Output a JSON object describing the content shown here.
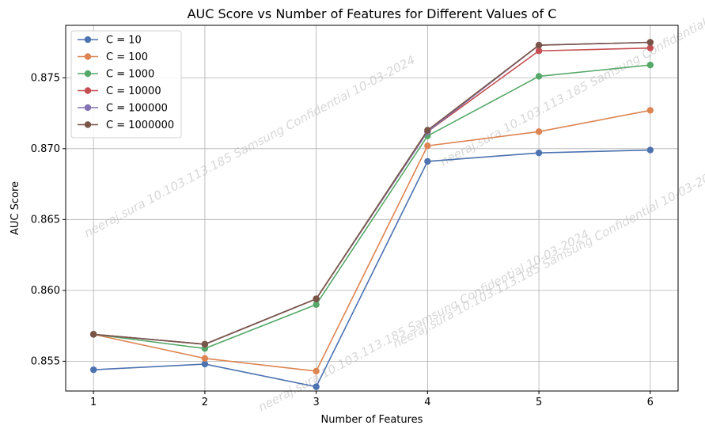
{
  "chart_data": {
    "type": "line",
    "title": "AUC Score vs Number of Features for Different Values of C",
    "xlabel": "Number of Features",
    "ylabel": "AUC Score",
    "x": [
      1,
      2,
      3,
      4,
      5,
      6
    ],
    "xticks": [
      "1",
      "2",
      "3",
      "4",
      "5",
      "6"
    ],
    "yticks": [
      "0.855",
      "0.860",
      "0.865",
      "0.870",
      "0.875"
    ],
    "ytick_values": [
      0.855,
      0.86,
      0.865,
      0.87,
      0.875
    ],
    "xlim": [
      0.75,
      6.25
    ],
    "ylim": [
      0.8529,
      0.8787
    ],
    "grid": true,
    "legend_position": "upper-left",
    "series": [
      {
        "name": "C = 10",
        "color": "#4c72b0",
        "values": [
          0.8544,
          0.8548,
          0.8532,
          0.8691,
          0.8697,
          0.8699
        ]
      },
      {
        "name": "C = 100",
        "color": "#dd8452",
        "values": [
          0.8569,
          0.8552,
          0.8543,
          0.8702,
          0.8712,
          0.8727
        ]
      },
      {
        "name": "C = 1000",
        "color": "#55a868",
        "values": [
          0.8569,
          0.8559,
          0.859,
          0.8709,
          0.8751,
          0.8759
        ]
      },
      {
        "name": "C = 10000",
        "color": "#c44e52",
        "values": [
          0.8569,
          0.8562,
          0.8594,
          0.8712,
          0.8769,
          0.8771
        ]
      },
      {
        "name": "C = 100000",
        "color": "#8172b3",
        "values": [
          0.8569,
          0.8562,
          0.8594,
          0.8712,
          0.8773,
          0.8775
        ]
      },
      {
        "name": "C = 1000000",
        "color": "#795548",
        "values": [
          0.8569,
          0.8562,
          0.8594,
          0.8713,
          0.8773,
          0.8775
        ]
      }
    ],
    "watermark": "neeraj.sura 10.103.113.185 Samsung Confidential 10-03-2024"
  }
}
